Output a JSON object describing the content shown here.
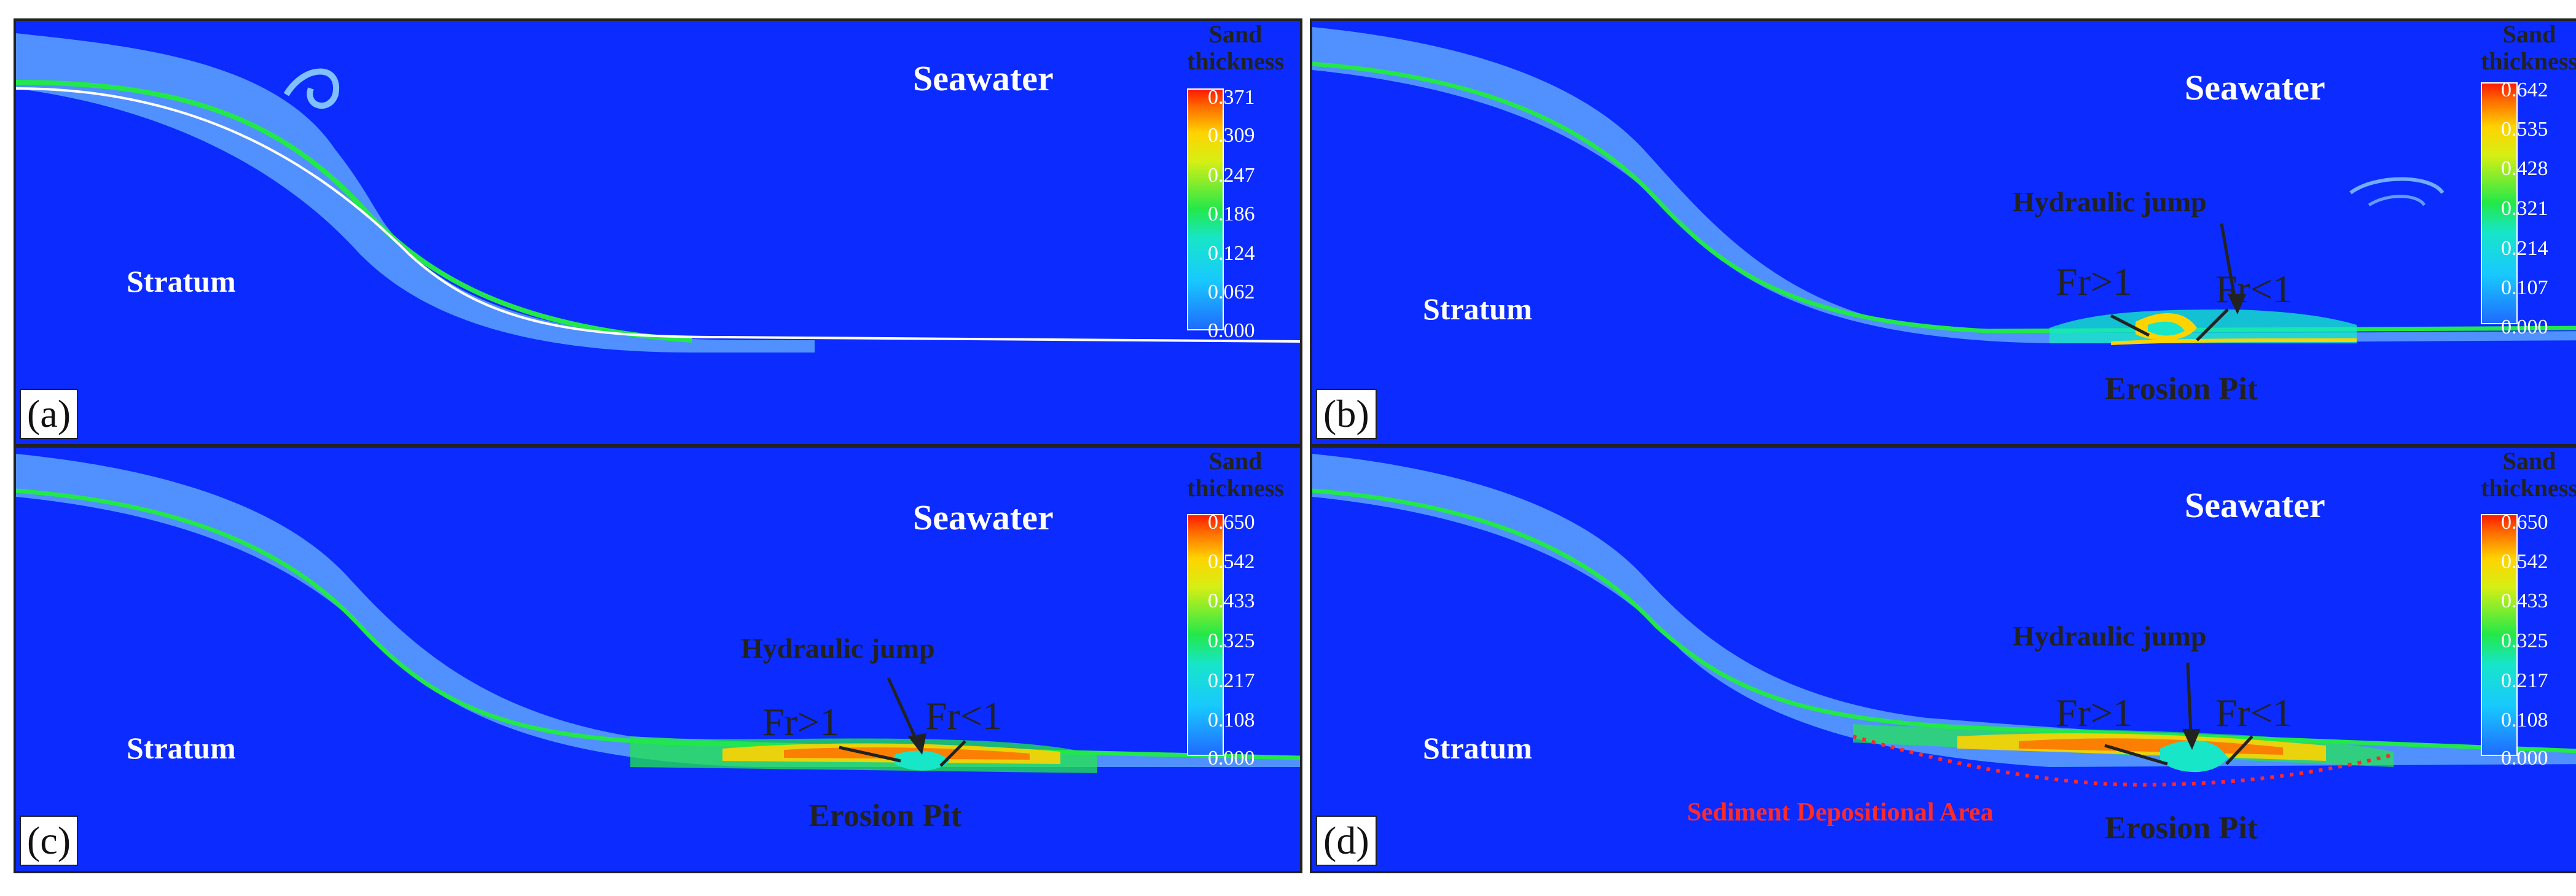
{
  "labels": {
    "seawater": "Seawater",
    "stratum": "Stratum",
    "hydraulic_jump": "Hydraulic jump",
    "fr_gt": "Fr>1",
    "fr_lt": "Fr<1",
    "erosion_pit": "Erosion Pit",
    "sediment_area": "Sediment Depositional Area",
    "colorbar_title_line1": "Sand",
    "colorbar_title_line2": "thickness"
  },
  "panels": [
    {
      "id": "a",
      "label": "(a)",
      "ticks": [
        "0.371",
        "0.309",
        "0.247",
        "0.186",
        "0.124",
        "0.062",
        "0.000"
      ]
    },
    {
      "id": "b",
      "label": "(b)",
      "ticks": [
        "0.642",
        "0.535",
        "0.428",
        "0.321",
        "0.214",
        "0.107",
        "0.000"
      ]
    },
    {
      "id": "c",
      "label": "(c)",
      "ticks": [
        "0.650",
        "0.542",
        "0.433",
        "0.325",
        "0.217",
        "0.108",
        "0.000"
      ]
    },
    {
      "id": "d",
      "label": "(d)",
      "ticks": [
        "0.650",
        "0.542",
        "0.433",
        "0.325",
        "0.217",
        "0.108",
        "0.000"
      ]
    }
  ],
  "colors": {
    "seawater_background": "#0b2bff",
    "flow_light": "#9fe6ff",
    "flow_cyan": "#18c8ff",
    "flow_green": "#22e84a",
    "flow_yellow": "#ffd300",
    "flow_red": "#ff1a00",
    "sediment_annotation": "#ff2a2a"
  }
}
